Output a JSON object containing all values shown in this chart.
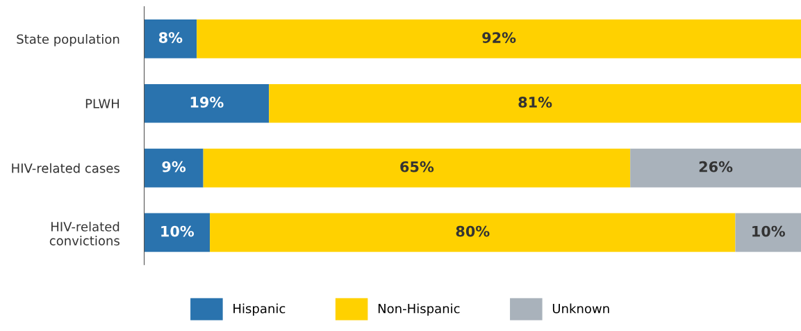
{
  "chart_data": {
    "type": "bar",
    "orientation": "horizontal",
    "stacked": true,
    "categories": [
      "State population",
      "PLWH",
      "HIV-related cases",
      "HIV-related\nconvictions"
    ],
    "series": [
      {
        "name": "Hispanic",
        "color": "#2a73ae",
        "values": [
          8,
          19,
          9,
          10
        ],
        "value_labels": [
          "8%",
          "19%",
          "9%",
          "10%"
        ]
      },
      {
        "name": "Non-Hispanic",
        "color": "#ffd100",
        "values": [
          92,
          81,
          65,
          80
        ],
        "value_labels": [
          "92%",
          "81%",
          "65%",
          "80%"
        ]
      },
      {
        "name": "Unknown",
        "color": "#a9b2bb",
        "values": [
          null,
          null,
          26,
          10
        ],
        "value_labels": [
          null,
          null,
          "26%",
          "10%"
        ]
      }
    ],
    "legend": "bottom",
    "grid": false
  }
}
